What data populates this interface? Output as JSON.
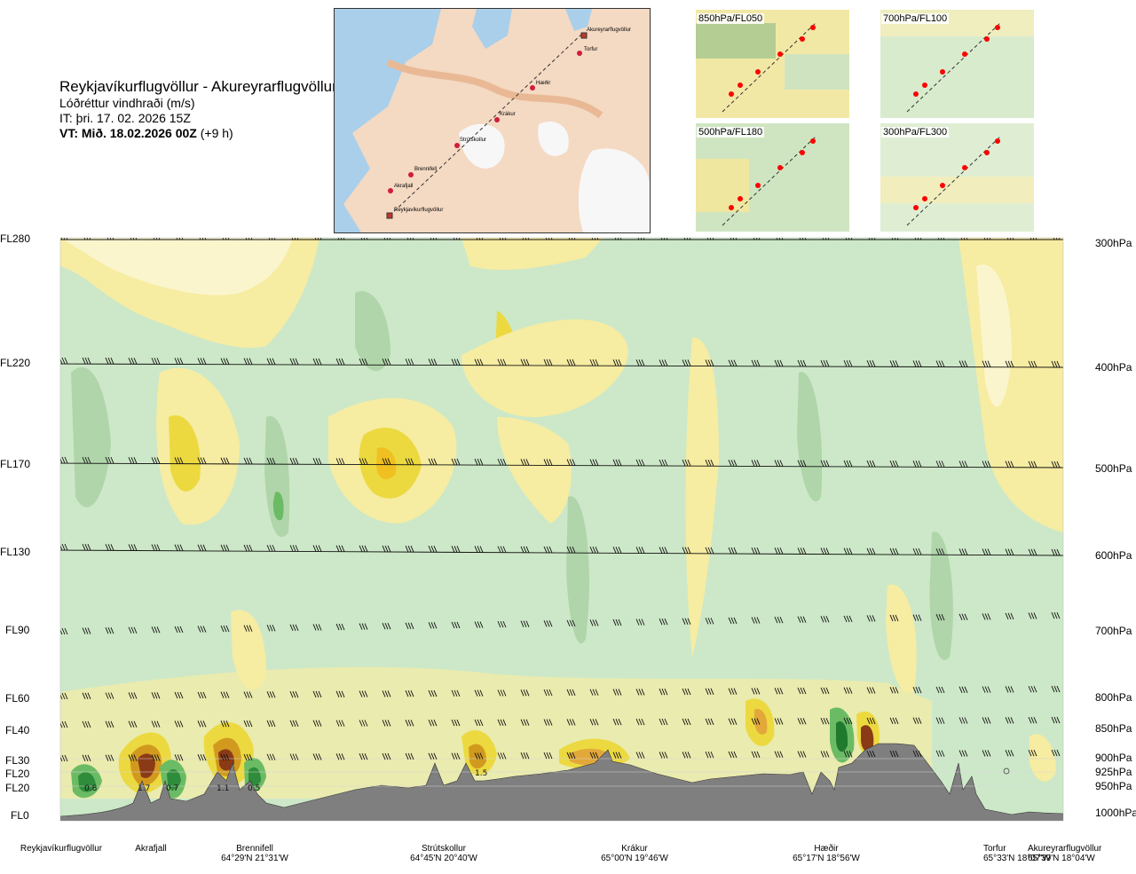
{
  "title": {
    "route": "Reykjavíkurflugvöllur - Akureyrarflugvöllur",
    "variable": "Lóðréttur vindhraði (m/s)",
    "issue_time": "IT: þri. 17. 02. 2026 15Z",
    "valid_time_label": "VT: Mið. 18.02.2026 00Z",
    "valid_offset": "(+9 h)"
  },
  "map": {
    "waypoints": [
      "Akureyrarflugvöllur",
      "Torfur",
      "Hæðir",
      "Krákur",
      "Strútskollur",
      "Brennifell",
      "Akrafjall",
      "Reykjavíkurflugvöllur"
    ]
  },
  "thumbnails": [
    "850hPa/FL050",
    "700hPa/FL100",
    "500hPa/FL180",
    "300hPa/FL300"
  ],
  "chart_data": {
    "type": "heatmap",
    "title": "Lóðréttur vindhraði (m/s)",
    "left_axis_levels": [
      "FL280",
      "FL220",
      "FL170",
      "FL130",
      "FL90",
      "FL60",
      "FL40",
      "FL30",
      "FL20",
      "FL20",
      "FL0"
    ],
    "right_axis_levels": [
      "300hPa",
      "400hPa",
      "500hPa",
      "600hPa",
      "700hPa",
      "800hPa",
      "850hPa",
      "900hPa",
      "925hPa",
      "950hPa",
      "1000hPa"
    ],
    "locations": [
      {
        "name": "Reykjavíkurflugvöllur",
        "coord": ""
      },
      {
        "name": "Akrafjall",
        "coord": ""
      },
      {
        "name": "Brennifell",
        "coord": "64°29'N 21°31'W"
      },
      {
        "name": "Strútskollur",
        "coord": "64°45'N 20°40'W"
      },
      {
        "name": "Krákur",
        "coord": "65°00'N 19°46'W"
      },
      {
        "name": "Hæðir",
        "coord": "65°17'N 18°56'W"
      },
      {
        "name": "Torfur",
        "coord": "65°33'N 18°07'W"
      },
      {
        "name": "Akureyrarflugvöllur",
        "coord": "65°39'N 18°04'W"
      }
    ],
    "annotations": [
      "0.8",
      "1.7",
      "0.7",
      "1.1",
      "0.5",
      "1.5"
    ]
  },
  "colors": {
    "green": "#cfe9c9",
    "yellow": "#f6eca2",
    "terrain": "#7f7f7f"
  }
}
